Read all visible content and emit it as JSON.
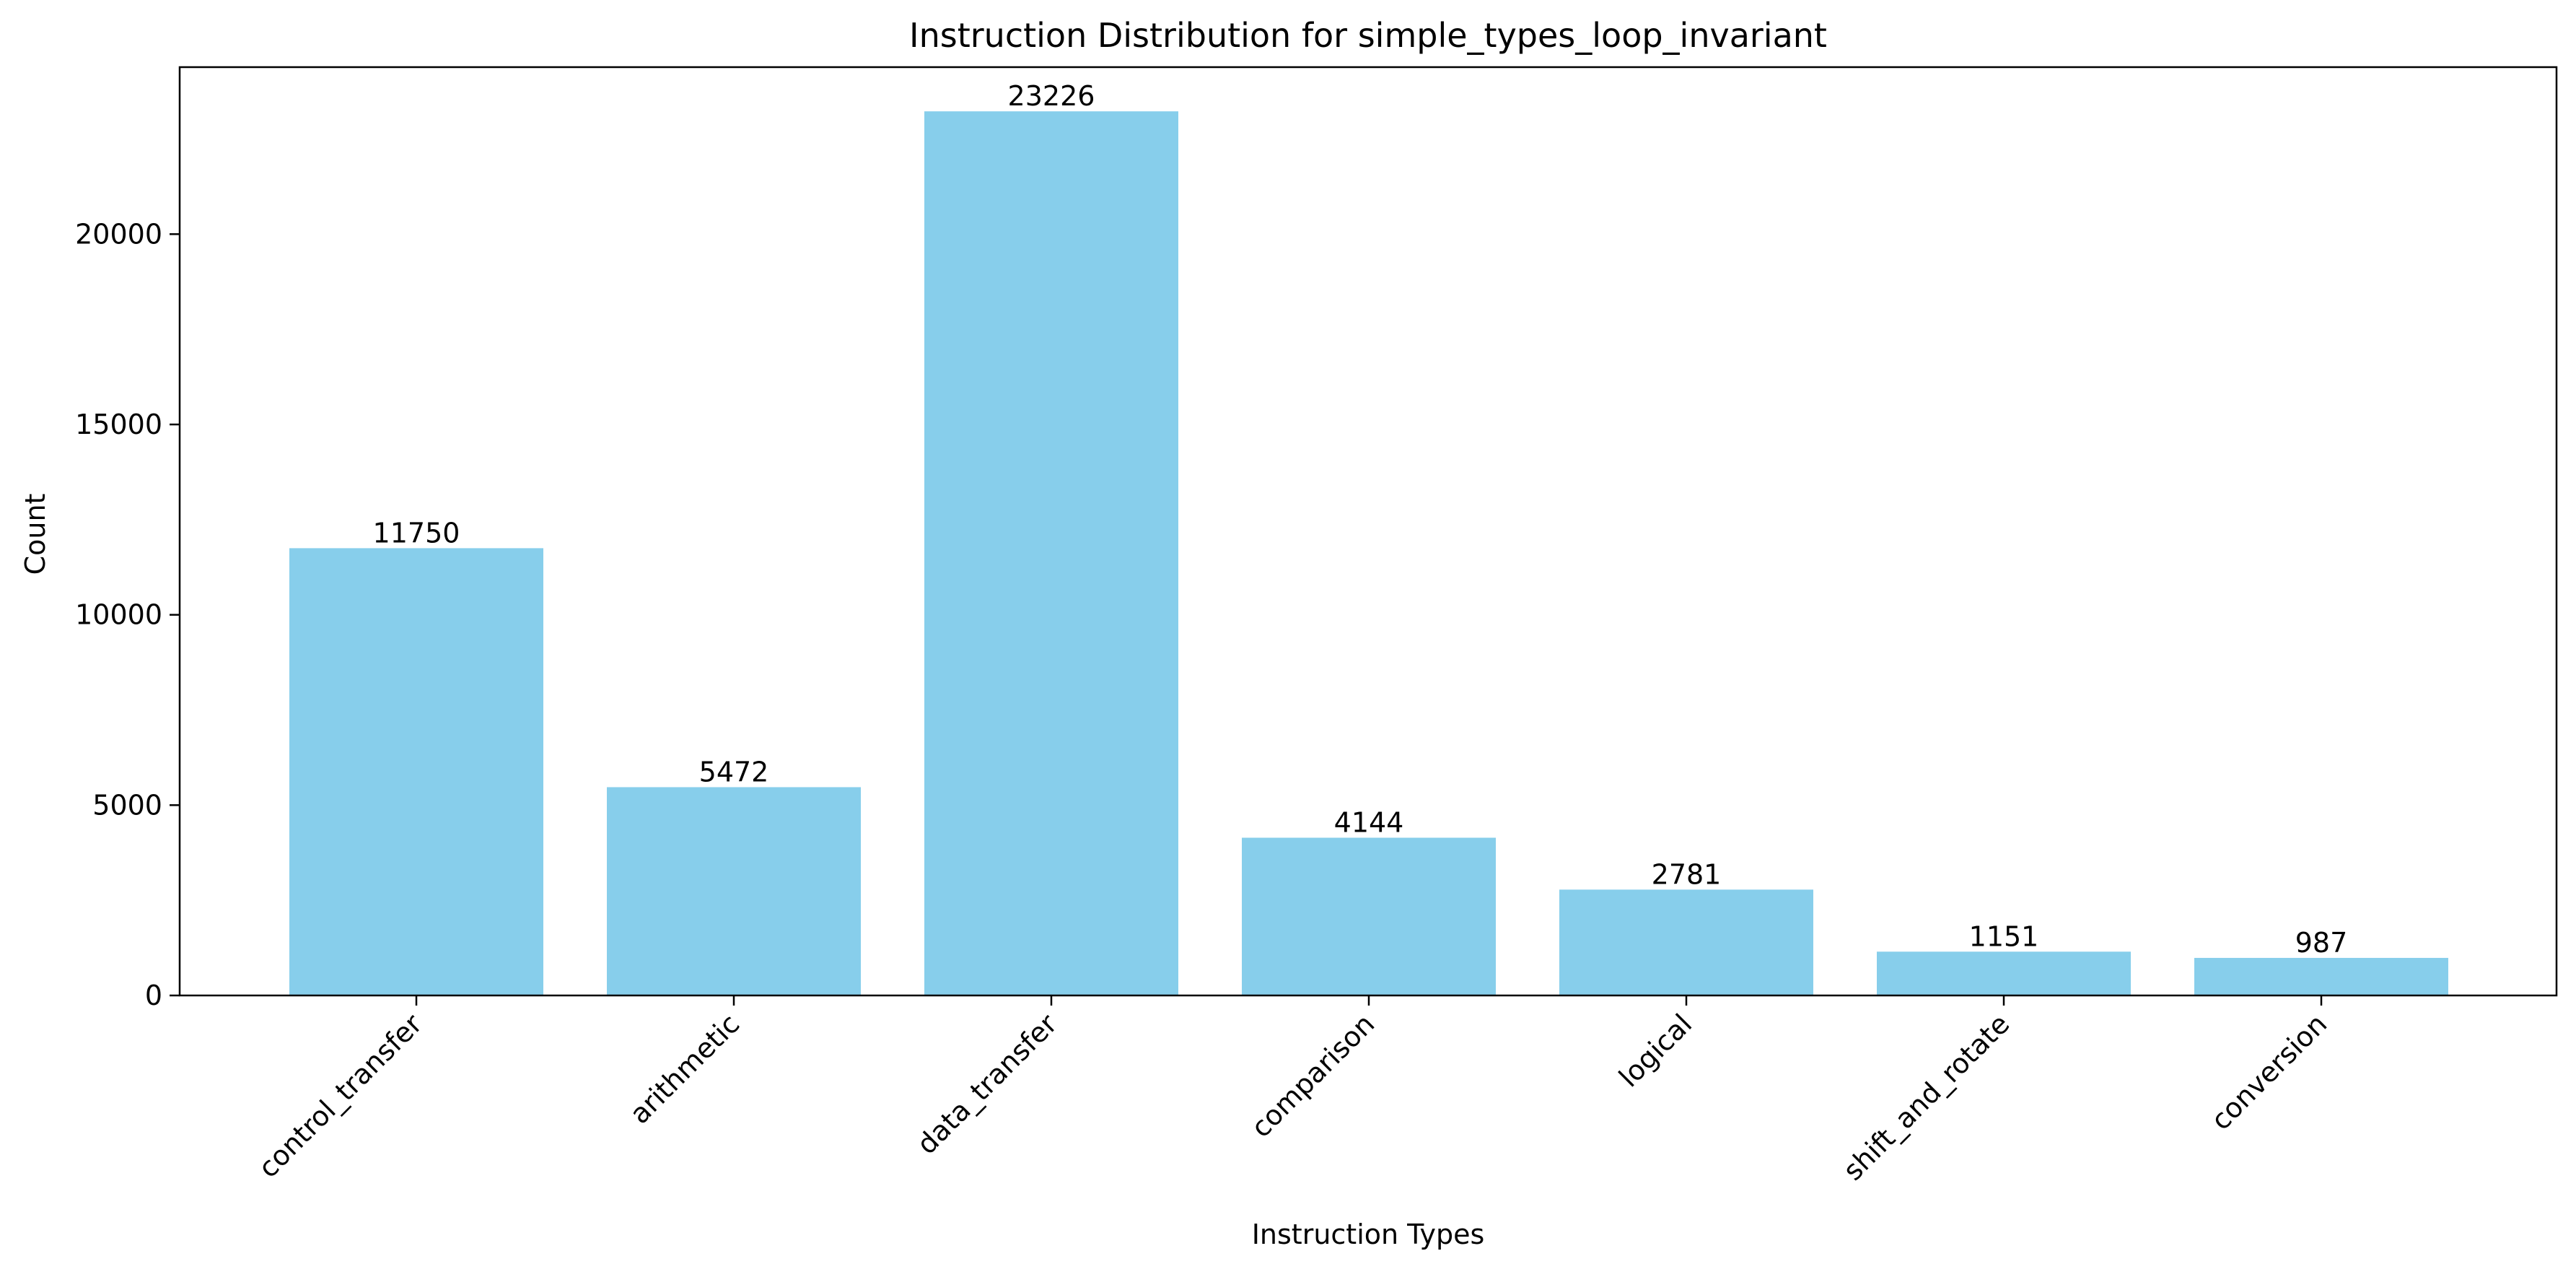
{
  "chart_data": {
    "type": "bar",
    "title": "Instruction Distribution for simple_types_loop_invariant",
    "xlabel": "Instruction Types",
    "ylabel": "Count",
    "categories": [
      "control_transfer",
      "arithmetic",
      "data_transfer",
      "comparison",
      "logical",
      "shift_and_rotate",
      "conversion"
    ],
    "values": [
      11750,
      5472,
      23226,
      4144,
      2781,
      1151,
      987
    ],
    "value_labels": [
      "11750",
      "5472",
      "23226",
      "4144",
      "2781",
      "1151",
      "987"
    ],
    "ylim": [
      0,
      24387
    ],
    "yticks": [
      0,
      5000,
      10000,
      15000,
      20000
    ],
    "ytick_labels": [
      "0",
      "5000",
      "10000",
      "15000",
      "20000"
    ],
    "grid": false,
    "legend": "none",
    "bar_color": "#87CEEB",
    "axis_color": "#000000"
  }
}
